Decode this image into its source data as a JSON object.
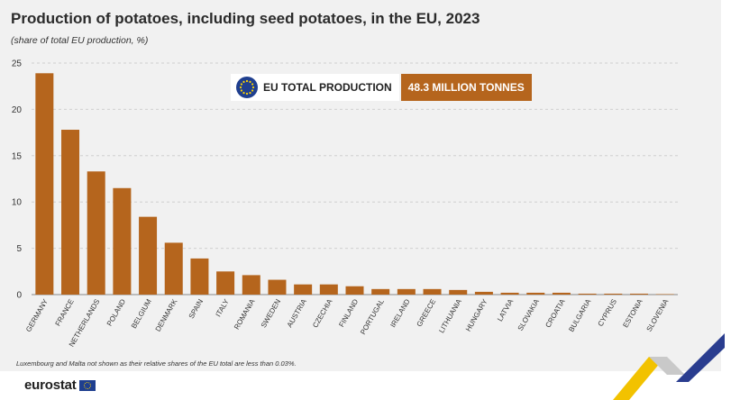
{
  "title": "Production of potatoes, including seed potatoes, in the EU, 2023",
  "subtitle": "(share of total EU production, %)",
  "callout": {
    "label": "EU TOTAL PRODUCTION",
    "value": "48.3 MILLION TONNES",
    "icon": "eu-flag-icon"
  },
  "footnote": "Luxembourg and Malta not shown as their relative shares of the EU total are less than 0.03%.",
  "logo_text": "eurostat",
  "colors": {
    "bar": "#b5651d",
    "background": "#f1f1f1",
    "grid": "#cfcfcf"
  },
  "chart_data": {
    "type": "bar",
    "categories": [
      "GERMANY",
      "FRANCE",
      "NETHERLANDS",
      "POLAND",
      "BELGIUM",
      "DENMARK",
      "SPAIN",
      "ITALY",
      "ROMANIA",
      "SWEDEN",
      "AUSTRIA",
      "CZECHIA",
      "FINLAND",
      "PORTUGAL",
      "IRELAND",
      "GREECE",
      "LITHUANIA",
      "HUNGARY",
      "LATVIA",
      "SLOVAKIA",
      "CROATIA",
      "BULGARIA",
      "CYPRUS",
      "ESTONIA",
      "SLOVENIA"
    ],
    "values": [
      23.9,
      17.8,
      13.3,
      11.5,
      8.4,
      5.6,
      3.9,
      2.5,
      2.1,
      1.6,
      1.1,
      1.1,
      0.9,
      0.6,
      0.6,
      0.6,
      0.5,
      0.3,
      0.2,
      0.2,
      0.2,
      0.1,
      0.1,
      0.1,
      0.05
    ],
    "yticks": [
      0,
      5,
      10,
      15,
      20,
      25
    ],
    "ylim": [
      0,
      25
    ],
    "grid": true,
    "xlabel": "",
    "ylabel": ""
  }
}
